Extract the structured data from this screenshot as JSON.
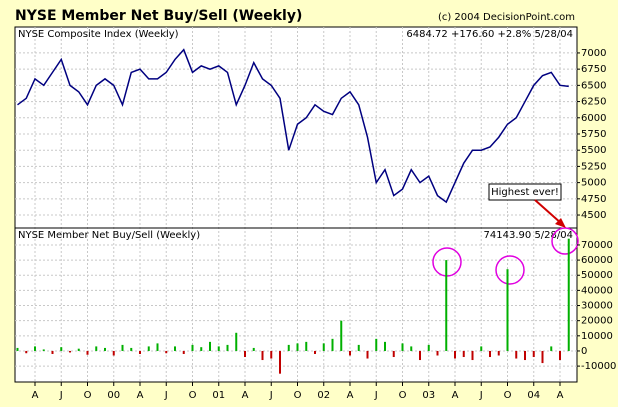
{
  "chart_data": [
    {
      "type": "line",
      "title": "NYSE Member Net Buy/Sell (Weekly)",
      "source": "(c) 2004 DecisionPoint.com",
      "label": "NYSE Composite Index (Weekly)",
      "last": "6484.72 +176.60 +2.8% 5/28/04",
      "color": "#000080",
      "values": [
        6200,
        6300,
        6600,
        6500,
        6700,
        6900,
        6500,
        6400,
        6200,
        6500,
        6600,
        6500,
        6200,
        6700,
        6750,
        6600,
        6600,
        6700,
        6900,
        7050,
        6700,
        6800,
        6750,
        6800,
        6700,
        6200,
        6500,
        6850,
        6600,
        6500,
        6300,
        5500,
        5900,
        6000,
        6200,
        6100,
        6050,
        6300,
        6400,
        6200,
        5700,
        5000,
        5200,
        4800,
        4900,
        5200,
        5000,
        5100,
        4800,
        4700,
        5000,
        5300,
        5500,
        5500,
        5550,
        5700,
        5900,
        6000,
        6250,
        6500,
        6650,
        6700,
        6500,
        6484.72
      ],
      "ylim": [
        4300,
        7400
      ],
      "yticks": [
        4500,
        4750,
        5000,
        5250,
        5500,
        5750,
        6000,
        6250,
        6500,
        6750,
        7000
      ],
      "grid": true
    },
    {
      "type": "bar",
      "label": "NYSE Member Net Buy/Sell (Weekly)",
      "last": "74143.90  5/28/04",
      "annotation": "Highest ever!",
      "categories": [
        null,
        null,
        "A",
        null,
        null,
        "J",
        null,
        null,
        "O",
        null,
        null,
        "00",
        null,
        null,
        "A",
        null,
        null,
        "J",
        null,
        null,
        "O",
        null,
        null,
        "01",
        null,
        null,
        "A",
        null,
        null,
        "J",
        null,
        null,
        "O",
        null,
        null,
        "02",
        null,
        null,
        "A",
        null,
        null,
        "J",
        null,
        null,
        "O",
        null,
        null,
        "03",
        null,
        null,
        "A",
        null,
        null,
        "J",
        null,
        null,
        "O",
        null,
        null,
        "04",
        null,
        null,
        "A",
        null
      ],
      "values": [
        2000,
        -1500,
        3000,
        1000,
        -2000,
        2500,
        -1000,
        1500,
        -2500,
        3000,
        2000,
        -3000,
        4000,
        2000,
        -2000,
        3000,
        5000,
        -1500,
        3000,
        -2000,
        4000,
        2500,
        6000,
        3000,
        4000,
        12000,
        -4000,
        2000,
        -6000,
        -5000,
        -15000,
        4000,
        5000,
        6000,
        -2000,
        5000,
        8000,
        20000,
        -3000,
        4000,
        -5000,
        8000,
        6000,
        -4000,
        5000,
        3000,
        -6000,
        4000,
        -3000,
        60000,
        -5000,
        -4000,
        -6000,
        3000,
        -4000,
        -3000,
        54000,
        -5000,
        -6000,
        -4000,
        -8000,
        3000,
        -6000,
        74143.9
      ],
      "positive_color": "#00b000",
      "negative_color": "#c00000",
      "ylim": [
        -20500,
        81200
      ],
      "yticks": [
        -10000,
        0,
        10000,
        20000,
        30000,
        40000,
        50000,
        60000,
        70000
      ],
      "grid": true
    }
  ]
}
